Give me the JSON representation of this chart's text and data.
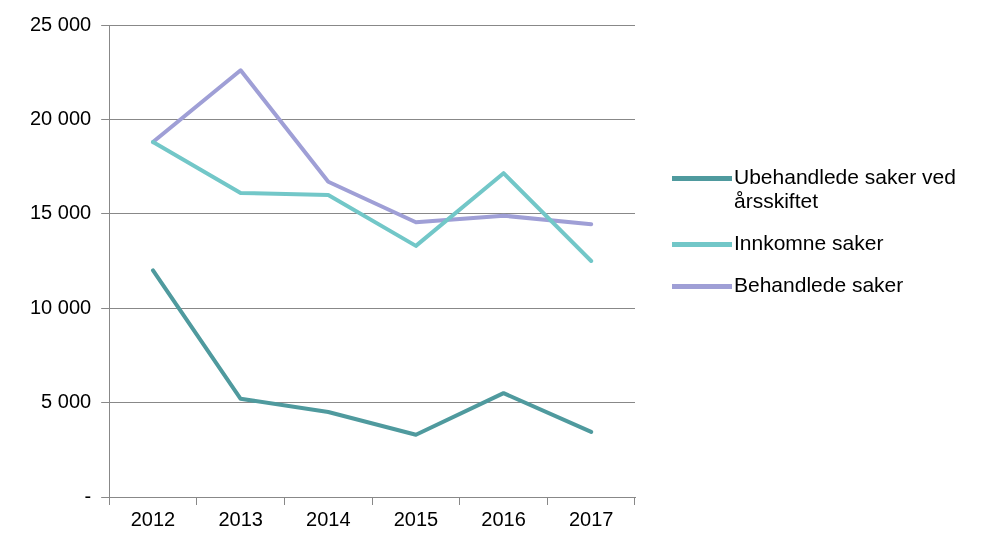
{
  "chart_data": {
    "type": "line",
    "categories": [
      "2012",
      "2013",
      "2014",
      "2015",
      "2016",
      "2017"
    ],
    "series": [
      {
        "name": "Ubehandlede saker ved årsskiftet",
        "color": "#4f9a9e",
        "values": [
          12000,
          5200,
          4500,
          3300,
          5500,
          3450
        ]
      },
      {
        "name": "Innkomne saker",
        "color": "#72c7c8",
        "values": [
          18800,
          16100,
          16000,
          13300,
          17150,
          12500
        ]
      },
      {
        "name": "Behandlede saker",
        "color": "#9f9fd6",
        "values": [
          18800,
          22600,
          16700,
          14550,
          14900,
          14450
        ]
      }
    ],
    "ylim": [
      0,
      25000
    ],
    "yticks": [
      {
        "value": 0,
        "label": "-"
      },
      {
        "value": 5000,
        "label": "5 000"
      },
      {
        "value": 10000,
        "label": "10 000"
      },
      {
        "value": 15000,
        "label": "15 000"
      },
      {
        "value": 20000,
        "label": "20 000"
      },
      {
        "value": 25000,
        "label": "25 000"
      }
    ],
    "grid": "y",
    "legend": "right",
    "marker": "none",
    "line_style": "solid"
  }
}
